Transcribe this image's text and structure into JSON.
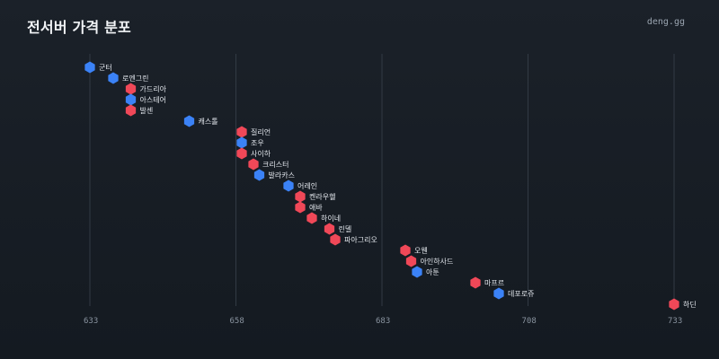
{
  "header": {
    "title": "전서버 가격 분포",
    "brand": "deng.gg"
  },
  "colors": {
    "blue": "#3b82f6",
    "red": "#f04858",
    "background": "#161c23",
    "grid": "#323a44"
  },
  "chart_data": {
    "type": "scatter",
    "title": "전서버 가격 분포",
    "xlabel": "",
    "ylabel": "",
    "xlim": [
      633,
      733
    ],
    "xticks": [
      633,
      658,
      683,
      708,
      733
    ],
    "grid": "vertical",
    "legend": "none",
    "points": [
      {
        "label": "군터",
        "value": 633,
        "color": "blue"
      },
      {
        "label": "로엔그린",
        "value": 637,
        "color": "blue"
      },
      {
        "label": "가드리아",
        "value": 640,
        "color": "red"
      },
      {
        "label": "아스테어",
        "value": 640,
        "color": "blue"
      },
      {
        "label": "발센",
        "value": 640,
        "color": "red"
      },
      {
        "label": "캐스톨",
        "value": 650,
        "color": "blue"
      },
      {
        "label": "질리언",
        "value": 659,
        "color": "red"
      },
      {
        "label": "조우",
        "value": 659,
        "color": "blue"
      },
      {
        "label": "사이하",
        "value": 659,
        "color": "red"
      },
      {
        "label": "크리스터",
        "value": 661,
        "color": "red"
      },
      {
        "label": "발라카스",
        "value": 662,
        "color": "blue"
      },
      {
        "label": "어레인",
        "value": 667,
        "color": "blue"
      },
      {
        "label": "켄라우헬",
        "value": 669,
        "color": "red"
      },
      {
        "label": "애바",
        "value": 669,
        "color": "red"
      },
      {
        "label": "하이네",
        "value": 671,
        "color": "red"
      },
      {
        "label": "린델",
        "value": 674,
        "color": "red"
      },
      {
        "label": "파아그리오",
        "value": 675,
        "color": "red"
      },
      {
        "label": "오웬",
        "value": 687,
        "color": "red"
      },
      {
        "label": "아인하사드",
        "value": 688,
        "color": "red"
      },
      {
        "label": "아툰",
        "value": 689,
        "color": "blue"
      },
      {
        "label": "마프르",
        "value": 699,
        "color": "red"
      },
      {
        "label": "데포로쥬",
        "value": 703,
        "color": "blue"
      },
      {
        "label": "하딘",
        "value": 733,
        "color": "red"
      }
    ]
  }
}
